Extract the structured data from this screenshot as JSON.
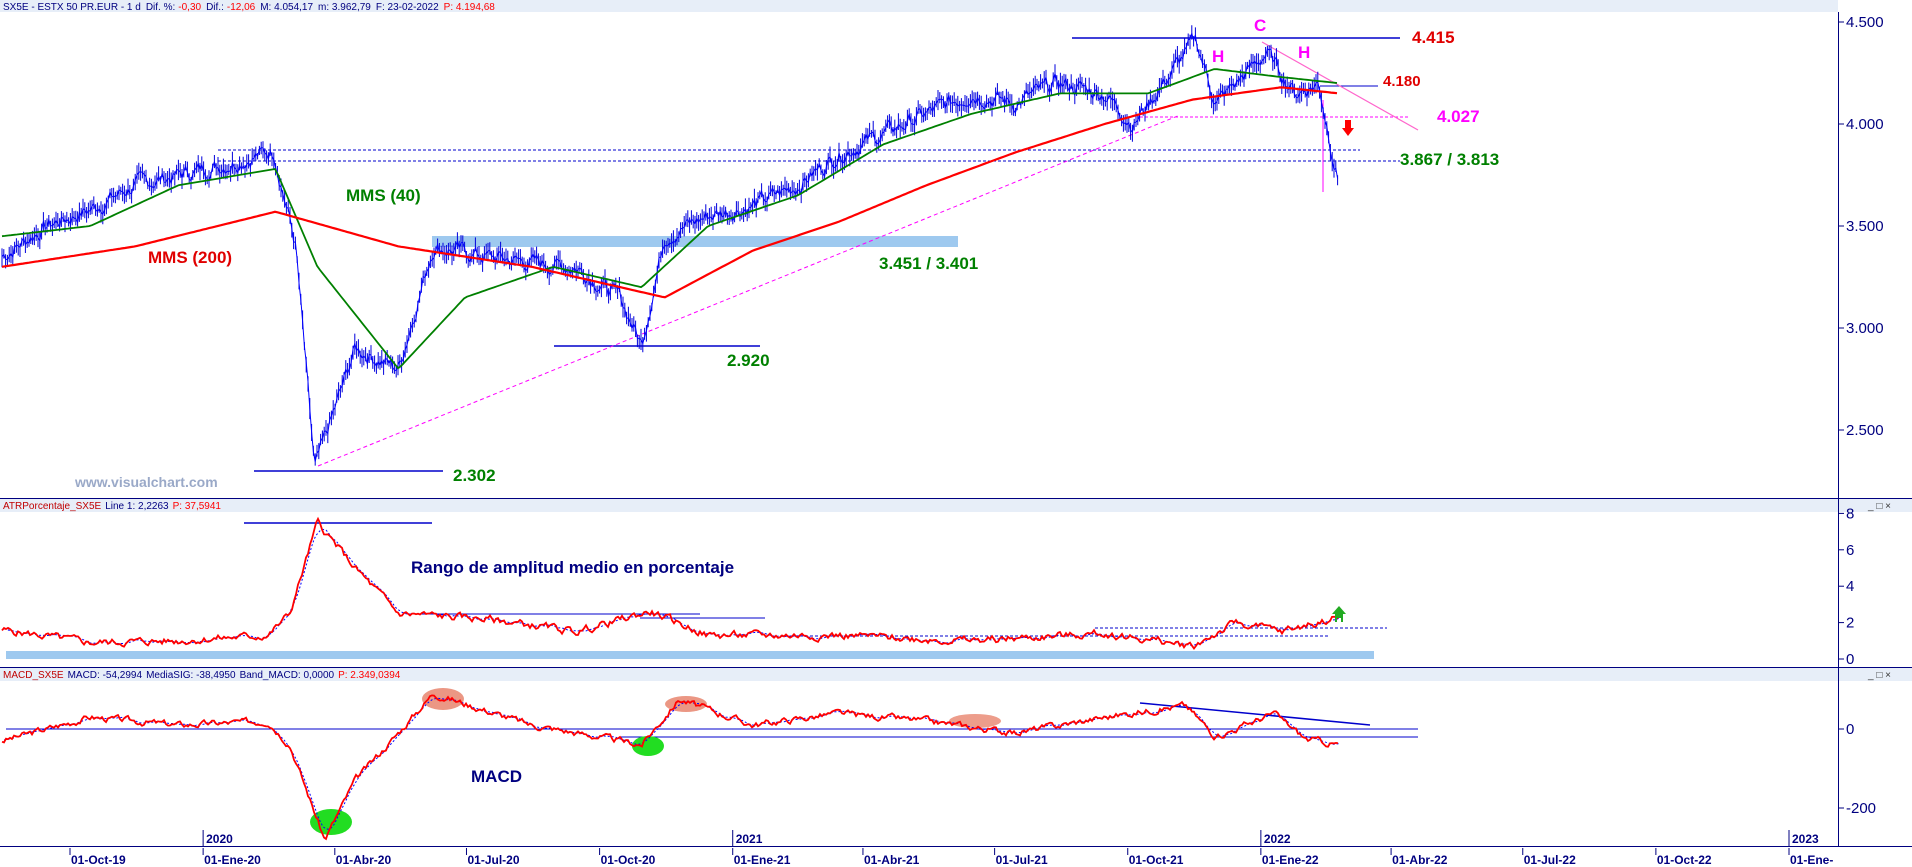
{
  "header": {
    "price_panel": {
      "symbol": "SX5E - ESTX 50 PR.EUR - 1 d",
      "dif_pct_label": "Dif. %:",
      "dif_pct_value": "-0,30",
      "dif_label": "Dif.:",
      "dif_value": "-12,06",
      "max_label": "M: 4.054,17",
      "min_label": "m: 3.962,79",
      "date_label": "F: 23-02-2022",
      "close_label": "P: 4.194,68"
    },
    "atr_panel": {
      "name": "ATRPorcentaje_SX5E",
      "line_label": "Line 1: 2,2263",
      "p_label": "P: 37,5941"
    },
    "macd_panel": {
      "name": "MACD_SX5E",
      "macd_label": "MACD: -54,2994",
      "signal_label": "MediaSIG: -38,4950",
      "band_label": "Band_MACD: 0,0000",
      "p_label": "P: 2.349,0394"
    }
  },
  "watermark": "www.visualchart.com",
  "panel_buttons": "_ □ ×",
  "annotations": {
    "mms40": "MMS (40)",
    "mms200": "MMS (200)",
    "lvl_4415": "4.415",
    "lvl_4180": "4.180",
    "lvl_4027": "4.027",
    "lvl_3867": "3.867 / 3.813",
    "lvl_3451": "3.451 / 3.401",
    "lvl_2920": "2.920",
    "lvl_2302": "2.302",
    "hs_c": "C",
    "hs_h1": "H",
    "hs_h2": "H",
    "atr_text": "Rango de amplitud medio en porcentaje",
    "macd_text": "MACD"
  },
  "chart_data": [
    {
      "type": "line",
      "title": "SX5E - ESTX 50 PR.EUR - 1 d",
      "y_ticks": [
        "4.500",
        "4.000",
        "3.500",
        "3.000",
        "2.500"
      ],
      "ylim": [
        2200,
        4550
      ],
      "x_ticks": [
        "01-Oct-19",
        "01-Ene-20",
        "01-Abr-20",
        "01-Jul-20",
        "01-Oct-20",
        "01-Ene-21",
        "01-Abr-21",
        "01-Jul-21",
        "01-Oct-21",
        "01-Ene-22",
        "01-Abr-22",
        "01-Jul-22",
        "01-Oct-22",
        "01-Ene-"
      ],
      "year_labels": [
        "2020",
        "2021",
        "2022",
        "2023"
      ],
      "series": [
        {
          "role": "price",
          "x": [
            "2019-08-15",
            "2019-09-15",
            "2019-10-15",
            "2019-11-15",
            "2019-12-15",
            "2020-01-15",
            "2020-02-19",
            "2020-03-05",
            "2020-03-18",
            "2020-04-15",
            "2020-05-15",
            "2020-06-08",
            "2020-07-15",
            "2020-08-15",
            "2020-09-15",
            "2020-10-15",
            "2020-10-30",
            "2020-11-15",
            "2020-12-15",
            "2021-01-15",
            "2021-02-15",
            "2021-03-15",
            "2021-04-15",
            "2021-05-15",
            "2021-06-15",
            "2021-07-15",
            "2021-08-13",
            "2021-09-15",
            "2021-10-05",
            "2021-11-17",
            "2021-12-01",
            "2022-01-05",
            "2022-01-25",
            "2022-02-10",
            "2022-02-24"
          ],
          "y": [
            3350,
            3500,
            3580,
            3700,
            3750,
            3800,
            3870,
            3400,
            2302,
            2900,
            2800,
            3400,
            3350,
            3320,
            3300,
            3150,
            2920,
            3450,
            3550,
            3600,
            3700,
            3850,
            3950,
            4050,
            4150,
            4100,
            4200,
            4150,
            4000,
            4415,
            4100,
            4350,
            4150,
            4200,
            3700
          ]
        },
        {
          "name": "MMS (40)",
          "x": [
            "2019-08-15",
            "2019-10-15",
            "2019-12-15",
            "2020-02-20",
            "2020-03-20",
            "2020-05-15",
            "2020-06-30",
            "2020-08-30",
            "2020-10-30",
            "2020-12-15",
            "2021-02-15",
            "2021-04-15",
            "2021-06-15",
            "2021-08-15",
            "2021-10-15",
            "2021-11-30",
            "2022-01-15",
            "2022-02-24"
          ],
          "y": [
            3450,
            3500,
            3700,
            3780,
            3300,
            2800,
            3150,
            3300,
            3200,
            3500,
            3650,
            3900,
            4050,
            4150,
            4150,
            4270,
            4230,
            4200
          ]
        },
        {
          "name": "MMS (200)",
          "x": [
            "2019-08-15",
            "2019-11-15",
            "2020-02-20",
            "2020-05-15",
            "2020-08-15",
            "2020-11-15",
            "2021-01-15",
            "2021-03-15",
            "2021-05-15",
            "2021-07-15",
            "2021-09-15",
            "2021-11-15",
            "2022-01-15",
            "2022-02-24"
          ],
          "y": [
            3300,
            3400,
            3570,
            3400,
            3300,
            3150,
            3380,
            3520,
            3700,
            3860,
            4000,
            4120,
            4180,
            4150
          ]
        }
      ]
    },
    {
      "type": "line",
      "title": "ATRPorcentaje_SX5E",
      "y_ticks": [
        "8",
        "6",
        "4",
        "2",
        "0"
      ],
      "ylim": [
        0,
        8
      ],
      "series": [
        {
          "name": "Line 1",
          "x": [
            "2019-08-15",
            "2019-10-15",
            "2019-12-15",
            "2020-02-15",
            "2020-03-01",
            "2020-03-20",
            "2020-04-15",
            "2020-05-15",
            "2020-07-15",
            "2020-09-15",
            "2020-11-05",
            "2020-12-15",
            "2021-03-15",
            "2021-06-15",
            "2021-09-15",
            "2021-11-15",
            "2021-12-15",
            "2022-01-15",
            "2022-02-24"
          ],
          "y": [
            1.6,
            0.9,
            1.0,
            1.3,
            2.5,
            7.5,
            5.0,
            2.5,
            2.2,
            1.5,
            2.6,
            1.3,
            1.3,
            1.0,
            1.4,
            0.7,
            2.0,
            1.5,
            2.3
          ]
        }
      ]
    },
    {
      "type": "line",
      "title": "MACD_SX5E",
      "y_ticks": [
        "0",
        "-200"
      ],
      "ylim": [
        -300,
        130
      ],
      "series": [
        {
          "name": "MACD",
          "x": [
            "2019-08-15",
            "2019-10-15",
            "2019-12-15",
            "2020-02-15",
            "2020-03-01",
            "2020-03-25",
            "2020-04-15",
            "2020-05-15",
            "2020-06-08",
            "2020-08-15",
            "2020-10-01",
            "2020-10-30",
            "2020-11-25",
            "2021-01-15",
            "2021-03-15",
            "2021-05-15",
            "2021-07-15",
            "2021-09-15",
            "2021-11-10",
            "2021-12-01",
            "2022-01-10",
            "2022-02-01",
            "2022-02-24"
          ],
          "y": [
            -30,
            30,
            10,
            20,
            -40,
            -280,
            -130,
            -10,
            90,
            10,
            -20,
            -40,
            75,
            10,
            40,
            20,
            -10,
            30,
            60,
            -20,
            40,
            -25,
            -40
          ]
        }
      ]
    }
  ]
}
